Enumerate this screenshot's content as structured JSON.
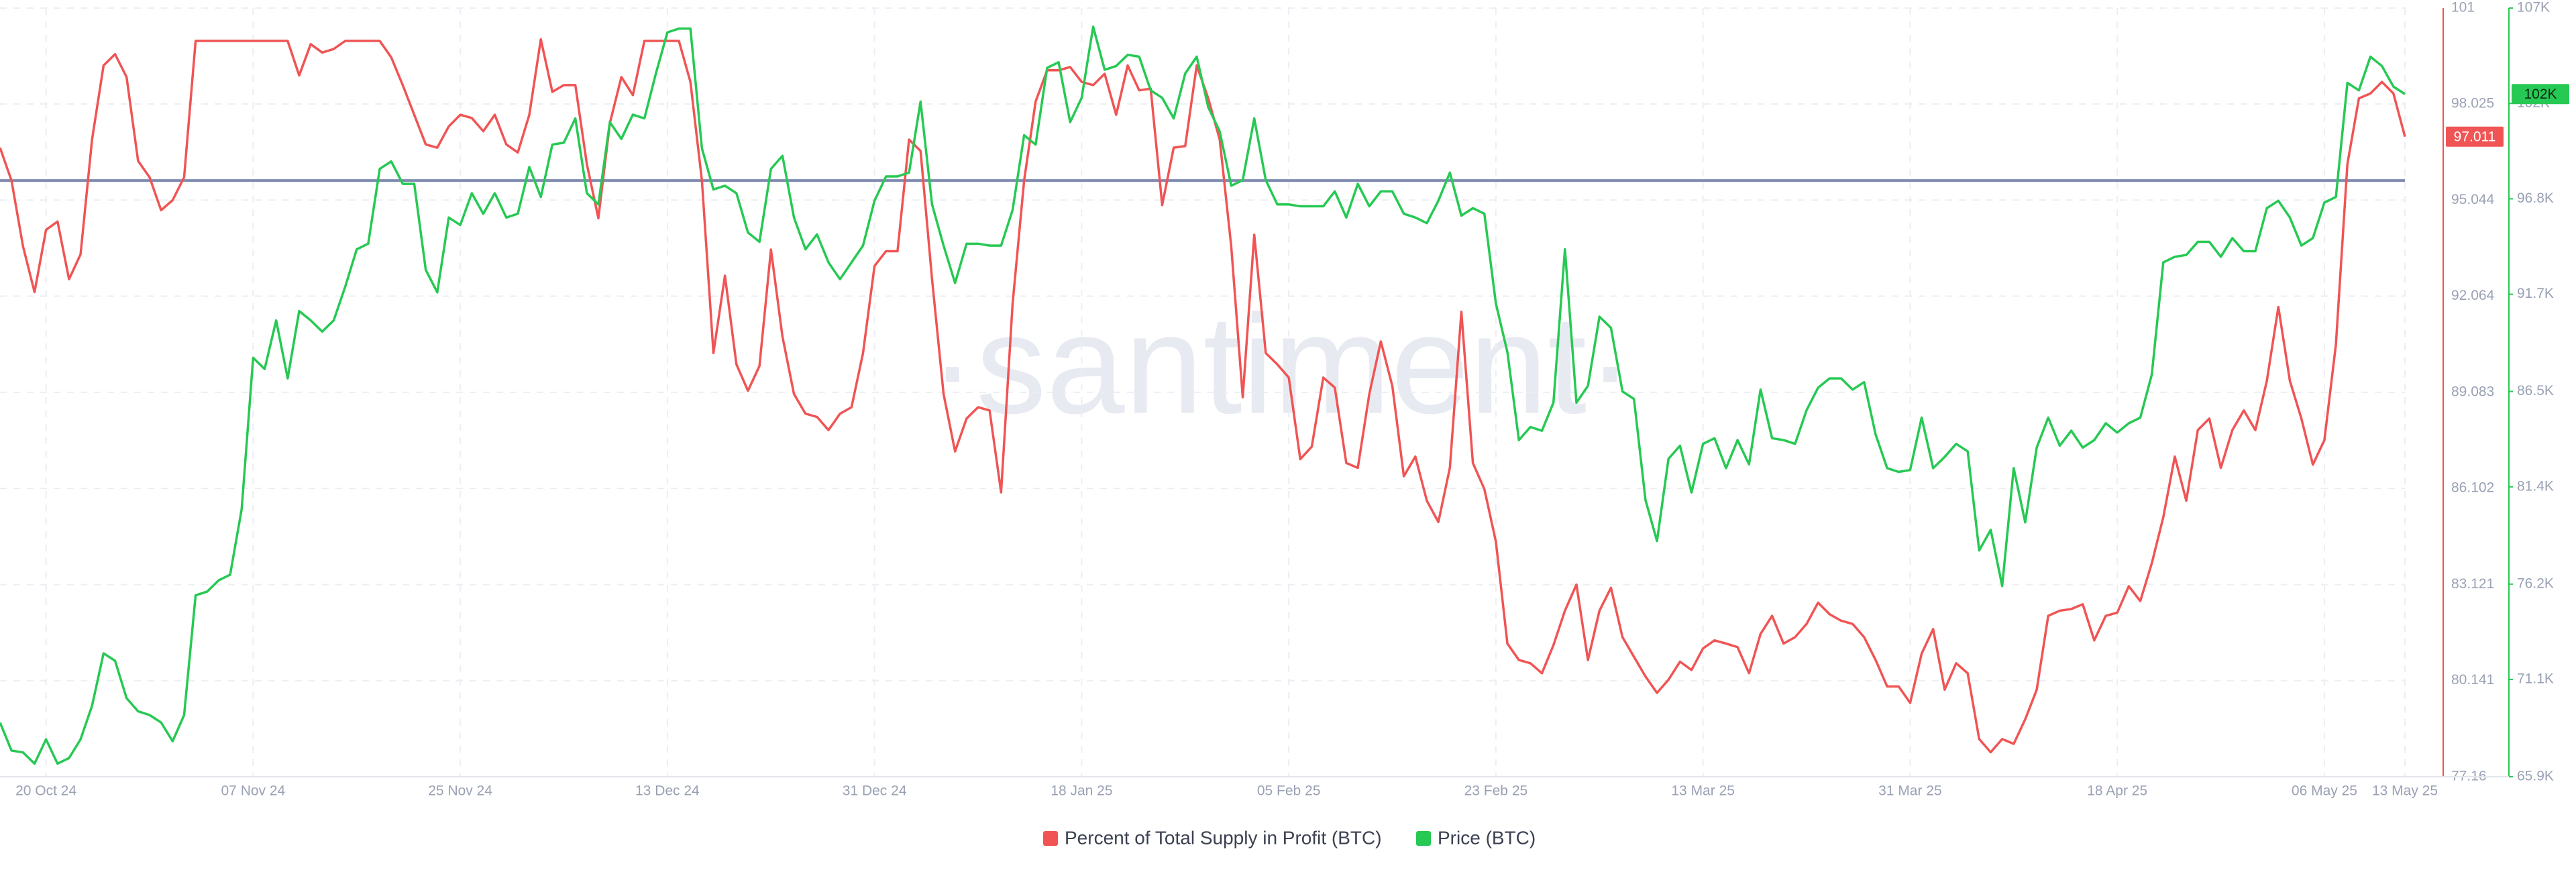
{
  "chart_data": {
    "type": "line",
    "watermark": "·santiment·",
    "categories": [
      null,
      null,
      null,
      null,
      "20 Oct 24",
      null,
      null,
      null,
      null,
      null,
      null,
      null,
      null,
      null,
      null,
      null,
      null,
      null,
      null,
      null,
      null,
      null,
      "07 Nov 24",
      null,
      null,
      null,
      null,
      null,
      null,
      null,
      null,
      null,
      null,
      null,
      null,
      null,
      null,
      null,
      null,
      null,
      "25 Nov 24",
      null,
      null,
      null,
      null,
      null,
      null,
      null,
      null,
      null,
      null,
      null,
      null,
      null,
      null,
      null,
      null,
      null,
      "13 Dec 24",
      null,
      null,
      null,
      null,
      null,
      null,
      null,
      null,
      null,
      null,
      null,
      null,
      null,
      null,
      null,
      null,
      null,
      "31 Dec 24",
      null,
      null,
      null,
      null,
      null,
      null,
      null,
      null,
      null,
      null,
      null,
      null,
      null,
      null,
      null,
      null,
      null,
      "18 Jan 25",
      null,
      null,
      null,
      null,
      null,
      null,
      null,
      null,
      null,
      null,
      null,
      null,
      null,
      null,
      null,
      null,
      null,
      "05 Feb 25",
      null,
      null,
      null,
      null,
      null,
      null,
      null,
      null,
      null,
      null,
      null,
      null,
      null,
      null,
      null,
      null,
      null,
      "23 Feb 25",
      null,
      null,
      null,
      null,
      null,
      null,
      null,
      null,
      null,
      null,
      null,
      null,
      null,
      null,
      null,
      null,
      null,
      "13 Mar 25",
      null,
      null,
      null,
      null,
      null,
      null,
      null,
      null,
      null,
      null,
      null,
      null,
      null,
      null,
      null,
      null,
      null,
      "31 Mar 25",
      null,
      null,
      null,
      null,
      null,
      null,
      null,
      null,
      null,
      null,
      null,
      null,
      null,
      null,
      null,
      null,
      null,
      "18 Apr 25",
      null,
      null,
      null,
      null,
      null,
      null,
      null,
      null,
      null,
      null,
      null,
      null,
      null,
      null,
      null,
      null,
      null,
      "06 May 25",
      null,
      null,
      null,
      null,
      null,
      null,
      "13 May 25"
    ],
    "series": [
      {
        "name": "Percent of Total Supply in Profit (BTC)",
        "color": "#f05454",
        "axis": "y",
        "values": [
          96.67,
          95.65,
          93.61,
          92.19,
          94.12,
          94.38,
          92.59,
          93.36,
          96.92,
          99.22,
          99.57,
          98.86,
          96.26,
          95.75,
          94.73,
          95.04,
          95.75,
          99.98,
          99.98,
          99.98,
          99.98,
          99.98,
          99.98,
          99.98,
          99.98,
          99.98,
          98.91,
          99.88,
          99.62,
          99.73,
          99.98,
          99.98,
          99.98,
          99.98,
          99.47,
          98.61,
          97.69,
          96.77,
          96.67,
          97.33,
          97.69,
          97.59,
          97.18,
          97.69,
          96.77,
          96.52,
          97.69,
          100.03,
          98.4,
          98.61,
          98.61,
          96.16,
          94.48,
          97.43,
          98.86,
          98.3,
          99.98,
          99.98,
          99.98,
          99.98,
          98.71,
          95.65,
          90.3,
          92.7,
          89.95,
          89.13,
          89.9,
          93.51,
          90.81,
          89.03,
          88.42,
          88.32,
          87.91,
          88.42,
          88.62,
          90.3,
          93.0,
          93.46,
          93.46,
          96.92,
          96.57,
          92.59,
          89.03,
          87.25,
          88.27,
          88.62,
          88.52,
          85.98,
          91.83,
          95.65,
          98.1,
          99.07,
          99.07,
          99.17,
          98.71,
          98.61,
          98.96,
          97.69,
          99.22,
          98.45,
          98.5,
          94.89,
          96.67,
          96.72,
          99.22,
          98.2,
          96.92,
          93.61,
          88.93,
          93.97,
          90.3,
          89.95,
          89.54,
          87.01,
          87.4,
          89.54,
          89.23,
          86.89,
          86.74,
          89.03,
          90.66,
          89.28,
          86.48,
          87.09,
          85.72,
          85.06,
          86.74,
          91.58,
          86.89,
          86.08,
          84.45,
          81.29,
          80.78,
          80.68,
          80.37,
          81.24,
          82.31,
          83.12,
          80.78,
          82.31,
          83.02,
          81.49,
          80.88,
          80.27,
          79.76,
          80.17,
          80.73,
          80.47,
          81.14,
          81.39,
          81.29,
          81.18,
          80.37,
          81.59,
          82.15,
          81.29,
          81.49,
          81.9,
          82.56,
          82.2,
          82.0,
          81.9,
          81.49,
          80.78,
          79.96,
          79.96,
          79.45,
          80.98,
          81.74,
          79.86,
          80.68,
          80.37,
          78.33,
          77.92,
          78.33,
          78.18,
          78.94,
          79.86,
          82.15,
          82.31,
          82.36,
          82.51,
          81.39,
          82.15,
          82.25,
          83.07,
          82.61,
          83.78,
          85.21,
          87.09,
          85.72,
          87.91,
          88.27,
          86.74,
          87.91,
          88.52,
          87.91,
          89.44,
          91.73,
          89.44,
          88.27,
          86.84,
          87.6,
          90.56,
          96.16,
          98.2,
          98.35,
          98.71,
          98.35,
          97.011
        ]
      },
      {
        "name": "Price (BTC)",
        "color": "#26c953",
        "axis": "y2",
        "current_label": "102K",
        "values": [
          68800,
          67300,
          67200,
          66600,
          67900,
          66600,
          66900,
          67900,
          69700,
          72500,
          72100,
          70100,
          69400,
          69200,
          68800,
          67800,
          69200,
          75600,
          75800,
          76400,
          76700,
          80200,
          88300,
          87700,
          90300,
          87200,
          90800,
          90300,
          89700,
          90300,
          92100,
          94100,
          94400,
          98400,
          98800,
          97600,
          97600,
          93000,
          91800,
          95800,
          95400,
          97100,
          96000,
          97100,
          95800,
          96000,
          98500,
          96900,
          99700,
          99800,
          101100,
          97100,
          96500,
          100900,
          100000,
          101300,
          101100,
          103500,
          105700,
          105900,
          105900,
          99500,
          97300,
          97500,
          97100,
          95000,
          94500,
          98400,
          99100,
          95800,
          94100,
          94900,
          93400,
          92500,
          93400,
          94300,
          96700,
          98000,
          98000,
          98200,
          102000,
          96500,
          94300,
          92300,
          94400,
          94400,
          94300,
          94300,
          96200,
          100200,
          99700,
          103800,
          104100,
          100900,
          102200,
          106000,
          103700,
          103900,
          104500,
          104400,
          102600,
          102200,
          101100,
          103500,
          104400,
          101700,
          100400,
          97500,
          97800,
          101100,
          97800,
          96500,
          96500,
          96400,
          96400,
          96400,
          97200,
          95800,
          97600,
          96400,
          97200,
          97200,
          96000,
          95800,
          95500,
          96700,
          98200,
          95900,
          96300,
          96000,
          91200,
          88600,
          83900,
          84600,
          84400,
          85900,
          94100,
          85900,
          86800,
          90500,
          89900,
          86500,
          86100,
          80700,
          78500,
          82900,
          83600,
          81100,
          83700,
          84000,
          82400,
          83900,
          82600,
          86600,
          84000,
          83900,
          83700,
          85500,
          86700,
          87200,
          87200,
          86600,
          87000,
          84200,
          82400,
          82200,
          82300,
          85100,
          82400,
          83000,
          83700,
          83300,
          78000,
          79100,
          76100,
          82400,
          79500,
          83500,
          85100,
          83600,
          84400,
          83500,
          83900,
          84800,
          84300,
          84800,
          85100,
          87400,
          93400,
          93700,
          93800,
          94500,
          94500,
          93700,
          94700,
          94000,
          94000,
          96300,
          96700,
          95800,
          94300,
          94700,
          96600,
          96900,
          103000,
          102600,
          104400,
          103900,
          102800,
          102400
        ]
      }
    ],
    "ylim": [
      77.16,
      101
    ],
    "yticks": [
      101,
      98.025,
      95.044,
      92.064,
      89.083,
      86.102,
      83.121,
      80.141,
      77.16
    ],
    "y2lim": [
      65900,
      107000
    ],
    "y2ticks": [
      {
        "value": 107000,
        "label": "107K"
      },
      {
        "value": 101900,
        "label": "102K"
      },
      {
        "value": 96800,
        "label": "96.8K"
      },
      {
        "value": 91700,
        "label": "91.7K"
      },
      {
        "value": 86500,
        "label": "86.5K"
      },
      {
        "value": 81400,
        "label": "81.4K"
      },
      {
        "value": 76200,
        "label": "76.2K"
      },
      {
        "value": 71100,
        "label": "71.1K"
      },
      {
        "value": 65900,
        "label": "65.9K"
      }
    ],
    "reference_line": {
      "value": 95.65,
      "color": "#7f8bb0"
    },
    "grid": true,
    "legend": "bottom"
  }
}
